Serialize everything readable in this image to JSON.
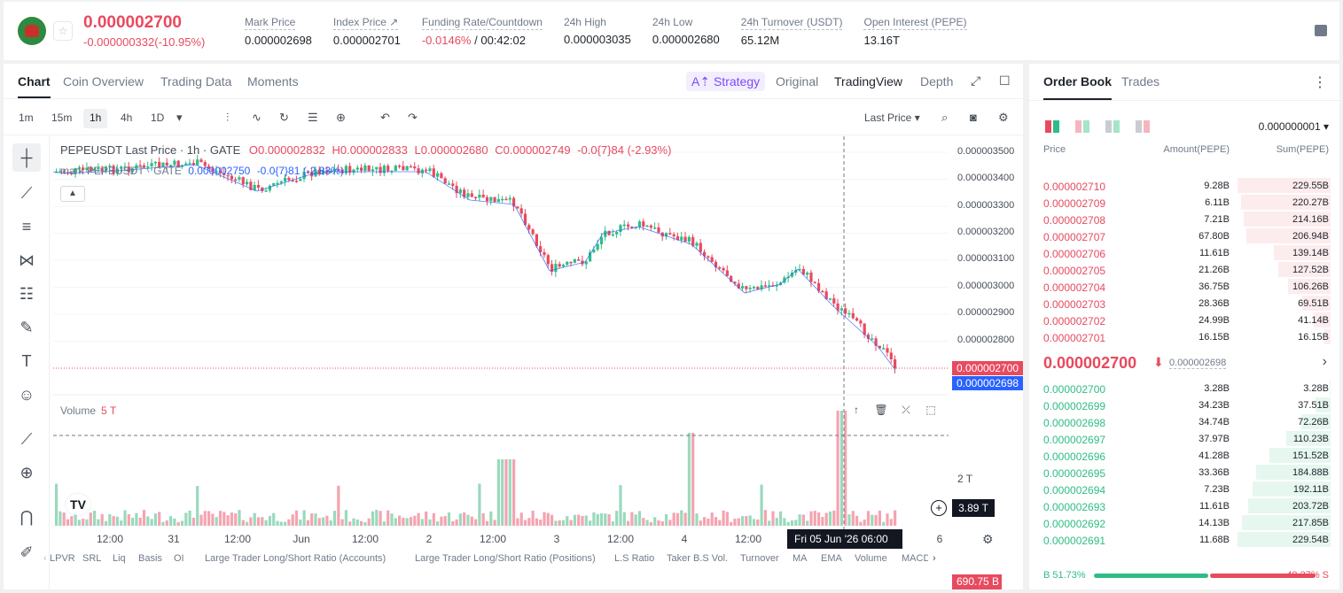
{
  "header": {
    "symbol_logo": "pepe-logo",
    "last_price": "0.000002700",
    "change": "-0.000000332(-10.95%)",
    "stats": [
      {
        "label": "Mark Price",
        "value": "0.000002698"
      },
      {
        "label": "Index Price ↗",
        "value": "0.000002701"
      },
      {
        "label": "Funding Rate/Countdown",
        "value_neg": "-0.0146%",
        "value": " / 00:42:02"
      },
      {
        "label": "24h High",
        "value": "0.000003035"
      },
      {
        "label": "24h Low",
        "value": "0.000002680"
      },
      {
        "label": "24h Turnover (USDT)",
        "value": "65.12M"
      },
      {
        "label": "Open Interest (PEPE)",
        "value": "13.16T"
      }
    ]
  },
  "chart_tabs": [
    "Chart",
    "Coin Overview",
    "Trading Data",
    "Moments"
  ],
  "strategy_label": "Strategy",
  "view_tabs": [
    "Original",
    "TradingView",
    "Depth"
  ],
  "timeframes": [
    "1m",
    "15m",
    "1h",
    "4h",
    "1D"
  ],
  "last_price_select": "Last Price",
  "legend": {
    "main": "PEPEUSDT Last Price · 1h · GATE",
    "o": "O0.000002832",
    "h": "H0.000002833",
    "l": "L0.000002680",
    "c": "C0.000002749",
    "chg": "-0.0{7}84 (-2.93%)",
    "mark_label": "mark PEPEUSDT · GATE",
    "mark_value": "0.000002750",
    "mark_chg": "-0.0{7}81 (-2.83%)"
  },
  "volume_label": "Volume",
  "volume_value": "5 T",
  "price_ticks": [
    "0.000003500",
    "0.000003400",
    "0.000003300",
    "0.000003200",
    "0.000003100",
    "0.000003000",
    "0.000002900",
    "0.000002800"
  ],
  "price_tag_last": "0.000002700",
  "price_tag_mark": "0.000002698",
  "crosshair_value": "3.89 T",
  "vol_tick": "2 T",
  "vol_tag": "690.75 B",
  "time_ticks": [
    "12:00",
    "31",
    "12:00",
    "Jun",
    "12:00",
    "2",
    "12:00",
    "3",
    "12:00",
    "4",
    "12:00",
    "6"
  ],
  "crosshair_time": "Fri 05 Jun '26   06:00",
  "indicators": [
    "LPVR",
    "SRL",
    "Liq",
    "Basis",
    "OI",
    "Large Trader Long/Short Ratio (Accounts)",
    "Large Trader Long/Short Ratio (Positions)",
    "L.S Ratio",
    "Taker B.S Vol.",
    "Turnover",
    "MA",
    "EMA",
    "Volume",
    "MACD"
  ],
  "orderbook": {
    "tabs": [
      "Order Book",
      "Trades"
    ],
    "precision": "0.000000001",
    "headers": [
      "Price",
      "Amount(PEPE)",
      "Sum(PEPE)"
    ],
    "asks": [
      {
        "price": "0.000002710",
        "amount": "9.28B",
        "sum": "229.55B",
        "depth": 1.0
      },
      {
        "price": "0.000002709",
        "amount": "6.11B",
        "sum": "220.27B",
        "depth": 0.96
      },
      {
        "price": "0.000002708",
        "amount": "7.21B",
        "sum": "214.16B",
        "depth": 0.93
      },
      {
        "price": "0.000002707",
        "amount": "67.80B",
        "sum": "206.94B",
        "depth": 0.9
      },
      {
        "price": "0.000002706",
        "amount": "11.61B",
        "sum": "139.14B",
        "depth": 0.61
      },
      {
        "price": "0.000002705",
        "amount": "21.26B",
        "sum": "127.52B",
        "depth": 0.56
      },
      {
        "price": "0.000002704",
        "amount": "36.75B",
        "sum": "106.26B",
        "depth": 0.46
      },
      {
        "price": "0.000002703",
        "amount": "28.36B",
        "sum": "69.51B",
        "depth": 0.3
      },
      {
        "price": "0.000002702",
        "amount": "24.99B",
        "sum": "41.14B",
        "depth": 0.18
      },
      {
        "price": "0.000002701",
        "amount": "16.15B",
        "sum": "16.15B",
        "depth": 0.07
      }
    ],
    "mid_price": "0.000002700",
    "mid_mark": "0.000002698",
    "bids": [
      {
        "price": "0.000002700",
        "amount": "3.28B",
        "sum": "3.28B",
        "depth": 0.01
      },
      {
        "price": "0.000002699",
        "amount": "34.23B",
        "sum": "37.51B",
        "depth": 0.16
      },
      {
        "price": "0.000002698",
        "amount": "34.74B",
        "sum": "72.26B",
        "depth": 0.31
      },
      {
        "price": "0.000002697",
        "amount": "37.97B",
        "sum": "110.23B",
        "depth": 0.48
      },
      {
        "price": "0.000002696",
        "amount": "41.28B",
        "sum": "151.52B",
        "depth": 0.66
      },
      {
        "price": "0.000002695",
        "amount": "33.36B",
        "sum": "184.88B",
        "depth": 0.8
      },
      {
        "price": "0.000002694",
        "amount": "7.23B",
        "sum": "192.11B",
        "depth": 0.84
      },
      {
        "price": "0.000002693",
        "amount": "11.61B",
        "sum": "203.72B",
        "depth": 0.89
      },
      {
        "price": "0.000002692",
        "amount": "14.13B",
        "sum": "217.85B",
        "depth": 0.95
      },
      {
        "price": "0.000002691",
        "amount": "11.68B",
        "sum": "229.54B",
        "depth": 1.0
      }
    ],
    "buy_ratio": "B 51.73%",
    "sell_ratio": "48.27% S",
    "buy_fraction": 0.5173
  },
  "colors": {
    "up": "#2ebd85",
    "down": "#e84a5f",
    "accent": "#7b4cf5",
    "mark_line": "#2962ff"
  }
}
